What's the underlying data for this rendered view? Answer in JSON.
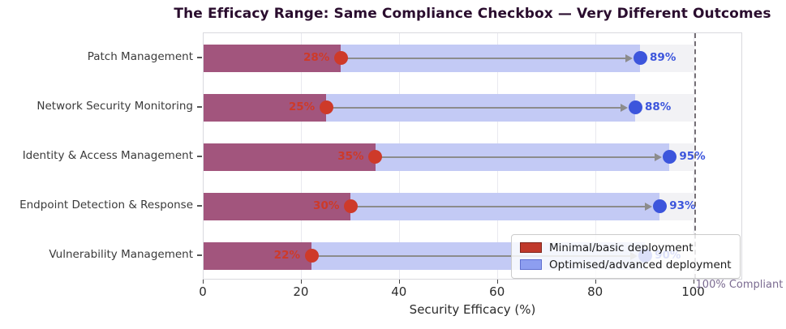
{
  "title": "The Efficacy Range: Same Compliance Checkbox — Very Different Outcomes",
  "chart_data": {
    "type": "bar",
    "orientation": "horizontal",
    "title": "The Efficacy Range: Same Compliance Checkbox — Very Different Outcomes",
    "categories": [
      "Patch Management",
      "Network Security Monitoring",
      "Identity & Access Management",
      "Endpoint Detection & Response",
      "Vulnerability Management"
    ],
    "series": [
      {
        "name": "Minimal/basic deployment",
        "values": [
          28,
          25,
          35,
          30,
          22
        ],
        "value_labels": [
          "28%",
          "25%",
          "35%",
          "30%",
          "22%"
        ],
        "bar_color": "#a2557d",
        "marker_color": "#ce3a29",
        "legend_color": "#c0392b",
        "legend_edge_color": "#7f241c"
      },
      {
        "name": "Optimised/advanced deployment",
        "values": [
          89,
          88,
          95,
          93,
          90
        ],
        "value_labels": [
          "89%",
          "88%",
          "95%",
          "93%",
          "90%"
        ],
        "bar_color": "#c3caf5",
        "marker_color": "#3c55dc",
        "legend_color": "#8d9ef0",
        "legend_edge_color": "#5f6fd0"
      }
    ],
    "xlabel": "Security Efficacy (%)",
    "xlim": [
      0,
      110
    ],
    "xticks": [
      0,
      20,
      40,
      60,
      80,
      100
    ],
    "grid": true,
    "legend_position": "lower right",
    "reference_line": {
      "x": 100,
      "label": "100% Compliant",
      "color": "#7b6b91"
    }
  },
  "colors": {
    "title": "#2a0d2e",
    "band": "#f2f2f5",
    "grid": "#e9e9ef",
    "arrow": "#8c8c8c",
    "dashed_line": "#767076",
    "axis_text": "#2b2b2b",
    "category_text": "#3a3a3a"
  }
}
